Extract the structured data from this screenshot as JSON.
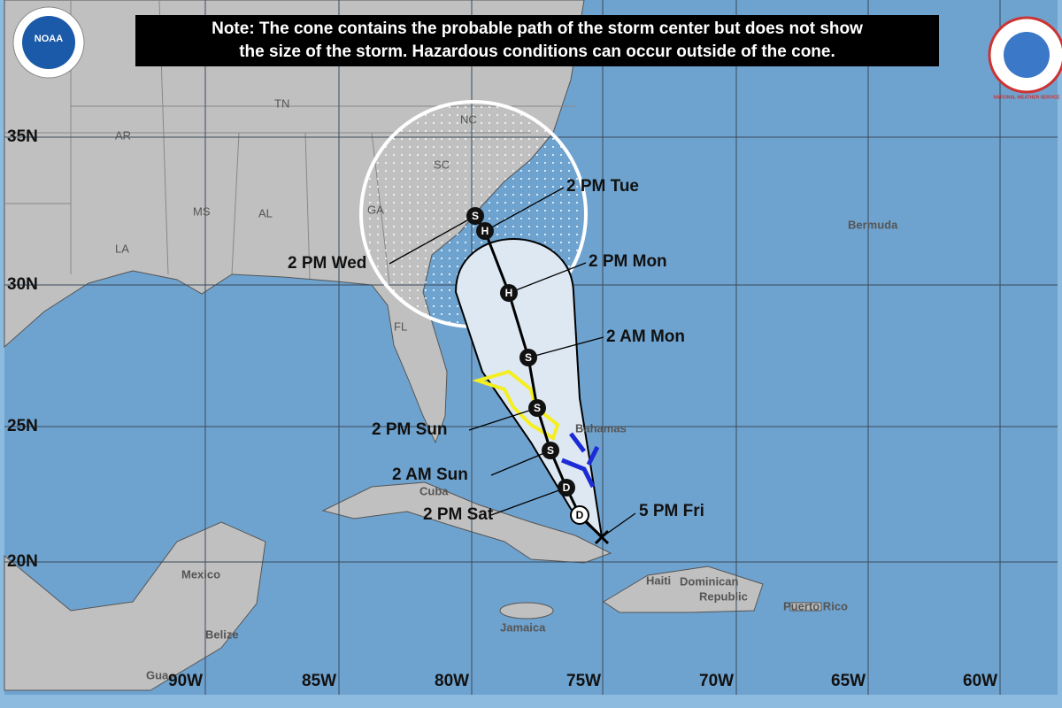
{
  "note": [
    "Note: The cone contains the probable path of the storm center but does not show",
    "the size of the storm. Hazardous conditions can occur outside of the cone."
  ],
  "logos": [
    "NOAA",
    "NATIONAL WEATHER SERVICE"
  ],
  "latitude_labels": [
    "35N",
    "30N",
    "25N",
    "20N"
  ],
  "longitude_labels": [
    "90W",
    "85W",
    "80W",
    "75W",
    "70W",
    "65W",
    "60W"
  ],
  "states": [
    "AR",
    "TN",
    "NC",
    "SC",
    "MS",
    "AL",
    "GA",
    "LA",
    "FL"
  ],
  "places": [
    "Bermuda",
    "Bahamas",
    "Cuba",
    "Mexico",
    "Belize",
    "Jamaica",
    "Haiti",
    "Dominican",
    "Republic",
    "Puerto Rico",
    "Gua"
  ],
  "forecast_symbols": [
    "D",
    "D",
    "S",
    "S",
    "S",
    "H",
    "H",
    "S"
  ],
  "forecast_times": [
    "5 PM Fri",
    "2 PM Sat",
    "2 AM Sun",
    "2 PM Sun",
    "2 AM Mon",
    "2 PM Mon",
    "2 PM Tue",
    "2 PM Wed"
  ]
}
